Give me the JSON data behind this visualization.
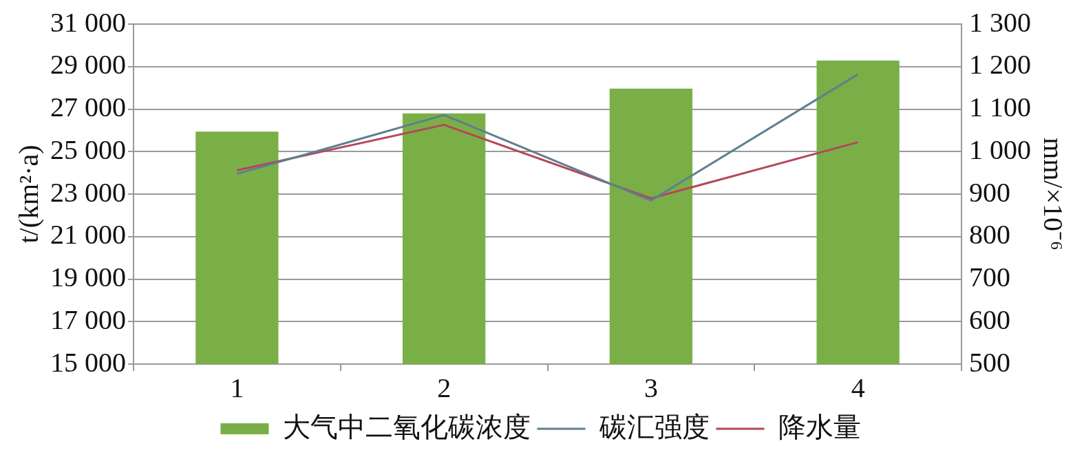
{
  "chart_data": {
    "type": "bar",
    "categories": [
      "1",
      "2",
      "3",
      "4"
    ],
    "ylabel": "t/(km²·a)",
    "y2label": "mm/×10⁻⁶",
    "ylim": [
      15000,
      31000
    ],
    "yticks": [
      {
        "value": 15000,
        "label": "15 000"
      },
      {
        "value": 17000,
        "label": "17 000"
      },
      {
        "value": 19000,
        "label": "19 000"
      },
      {
        "value": 21000,
        "label": "21 000"
      },
      {
        "value": 23000,
        "label": "23 000"
      },
      {
        "value": 25000,
        "label": "25 000"
      },
      {
        "value": 27000,
        "label": "27 000"
      },
      {
        "value": 29000,
        "label": "29 000"
      },
      {
        "value": 31000,
        "label": "31 000"
      }
    ],
    "y2lim": [
      500,
      1300
    ],
    "y2ticks": [
      500,
      600,
      700,
      800,
      900,
      {
        "value": 1000,
        "label": "1 000"
      },
      {
        "value": 1100,
        "label": "1 100"
      },
      {
        "value": 1200,
        "label": "1 200"
      },
      {
        "value": 1300,
        "label": "1 300"
      }
    ],
    "grid": "y",
    "legend": "bottom",
    "series": [
      {
        "name": "大气中二氧化碳浓度",
        "axis": "y2",
        "color": "#7aaf48",
        "values": [
          1047,
          1090,
          1148,
          1214
        ]
      },
      {
        "name": "碳汇强度",
        "type": "line",
        "color": "#5f7f8f",
        "values": [
          23950,
          26720,
          22700,
          28640
        ]
      },
      {
        "name": "降水量",
        "type": "line",
        "axis": "y2",
        "color": "#b5465a",
        "values": [
          956,
          1063,
          890,
          1022
        ]
      }
    ]
  }
}
